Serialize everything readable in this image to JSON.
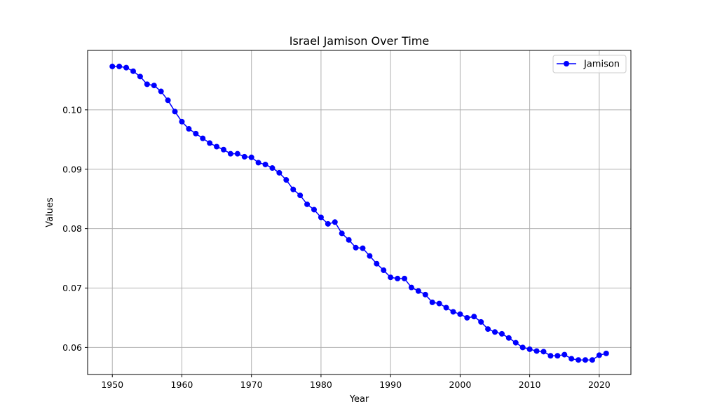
{
  "chart_data": {
    "type": "line",
    "title": "Israel Jamison Over Time",
    "xlabel": "Year",
    "ylabel": "Values",
    "xlim": [
      1946.45,
      2024.55
    ],
    "ylim": [
      0.05545,
      0.11
    ],
    "xticks": [
      1950,
      1960,
      1970,
      1980,
      1990,
      2000,
      2010,
      2020
    ],
    "yticks": [
      0.06,
      0.07,
      0.08,
      0.09,
      0.1
    ],
    "ytick_labels": [
      "0.06",
      "0.07",
      "0.08",
      "0.09",
      "0.10"
    ],
    "grid": true,
    "legend_position": "top-right",
    "series": [
      {
        "name": "Jamison",
        "color": "#0000ff",
        "marker": "circle",
        "x": [
          1950,
          1951,
          1952,
          1953,
          1954,
          1955,
          1956,
          1957,
          1958,
          1959,
          1960,
          1961,
          1962,
          1963,
          1964,
          1965,
          1966,
          1967,
          1968,
          1969,
          1970,
          1971,
          1972,
          1973,
          1974,
          1975,
          1976,
          1977,
          1978,
          1979,
          1980,
          1981,
          1982,
          1983,
          1984,
          1985,
          1986,
          1987,
          1988,
          1989,
          1990,
          1991,
          1992,
          1993,
          1994,
          1995,
          1996,
          1997,
          1998,
          1999,
          2000,
          2001,
          2002,
          2003,
          2004,
          2005,
          2006,
          2007,
          2008,
          2009,
          2010,
          2011,
          2012,
          2013,
          2014,
          2015,
          2016,
          2017,
          2018,
          2019,
          2020,
          2021
        ],
        "values": [
          0.1073,
          0.1073,
          0.1071,
          0.1065,
          0.1056,
          0.1043,
          0.1041,
          0.1031,
          0.1016,
          0.0997,
          0.098,
          0.0968,
          0.096,
          0.0952,
          0.0944,
          0.0938,
          0.0933,
          0.0926,
          0.0926,
          0.0921,
          0.092,
          0.0911,
          0.0908,
          0.0902,
          0.0894,
          0.0882,
          0.0866,
          0.0856,
          0.0841,
          0.0832,
          0.0819,
          0.0808,
          0.0811,
          0.0792,
          0.0781,
          0.0768,
          0.0767,
          0.0754,
          0.0741,
          0.073,
          0.0718,
          0.0716,
          0.0716,
          0.0701,
          0.0695,
          0.0689,
          0.0676,
          0.0674,
          0.0667,
          0.066,
          0.0656,
          0.065,
          0.0652,
          0.0643,
          0.0631,
          0.0626,
          0.0623,
          0.0616,
          0.0608,
          0.06,
          0.0597,
          0.0594,
          0.0593,
          0.0586,
          0.0586,
          0.0588,
          0.0581,
          0.0579,
          0.0579,
          0.0579,
          0.0587,
          0.059
        ]
      }
    ]
  }
}
